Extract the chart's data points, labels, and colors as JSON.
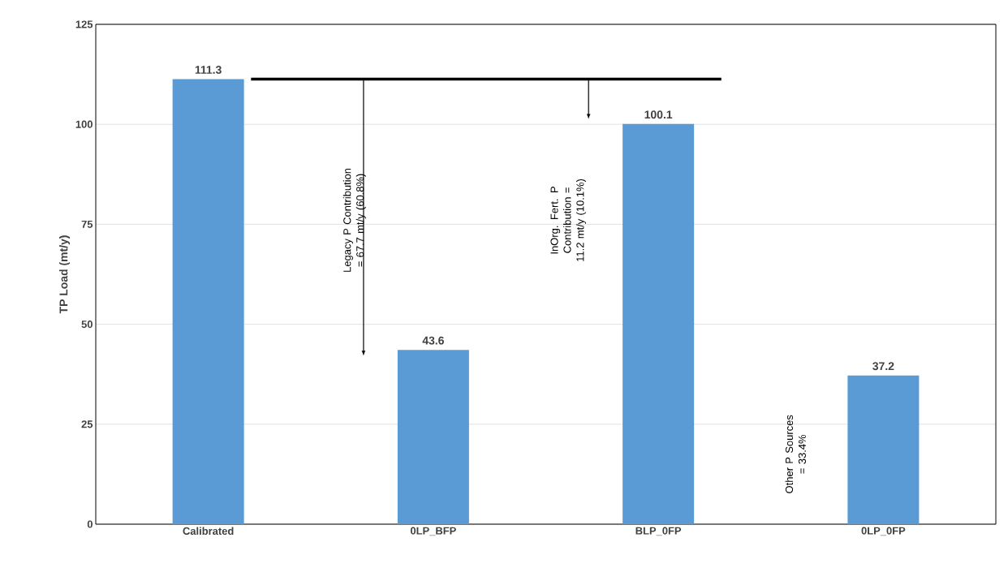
{
  "chart_data": {
    "type": "bar",
    "ylabel": "TP Load (mt/y)",
    "categories": [
      "Calibrated",
      "0LP_BFP",
      "BLP_0FP",
      "0LP_0FP"
    ],
    "values": [
      111.3,
      43.6,
      100.1,
      37.2
    ],
    "color": "#5b9bd5",
    "ylim": [
      0,
      125
    ],
    "yticks": [
      0,
      25,
      50,
      75,
      100,
      125
    ],
    "grid": "y",
    "data_labels": true,
    "ref_lines": [
      {
        "axis": "y",
        "value": 111.3,
        "color": "#000000"
      }
    ],
    "annotations": [
      "Legacy P Contribution = 67.7 mt/y (60.8%)",
      "InOrg. Fert. P Contribution = 11.2 mt/y (10.1%)",
      "Other P Sources = 33.4%"
    ]
  }
}
